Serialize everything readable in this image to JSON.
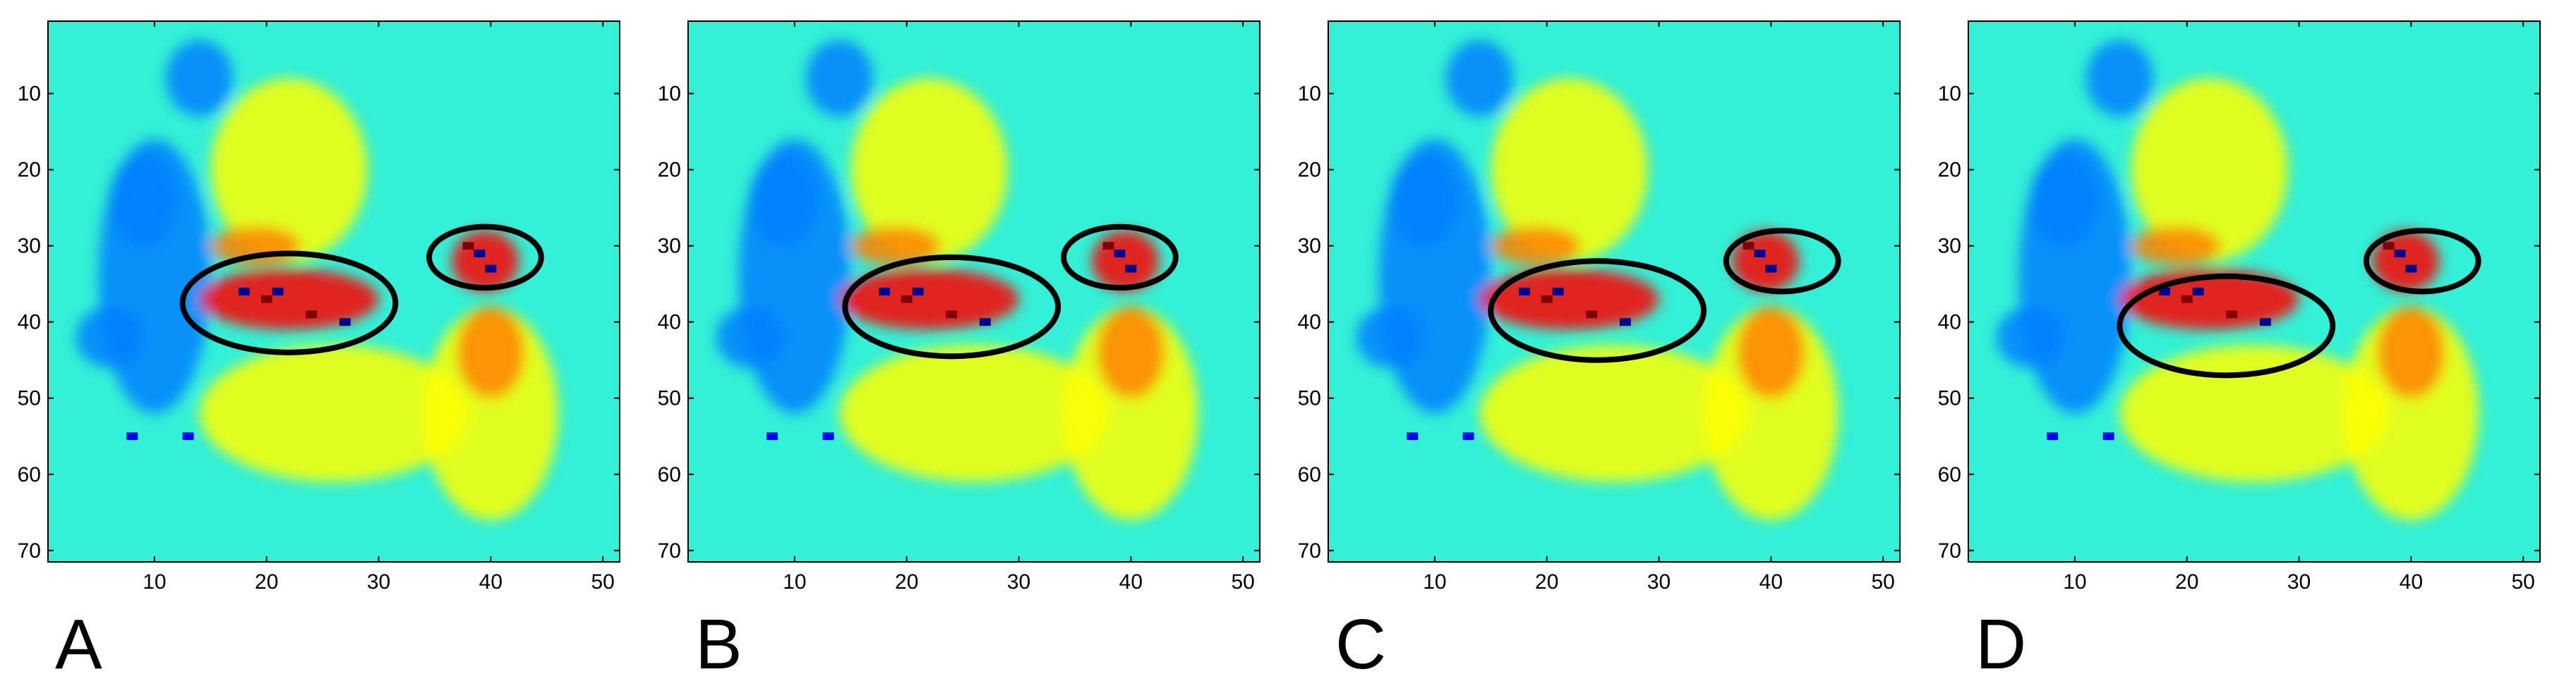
{
  "figure": {
    "panels": [
      {
        "label": "A"
      },
      {
        "label": "B"
      },
      {
        "label": "C"
      },
      {
        "label": "D"
      }
    ]
  },
  "colors": {
    "background_cyan": "#33f0d6",
    "ellipse_stroke": "#000000",
    "colormap": [
      "#00008f",
      "#0000ff",
      "#0080ff",
      "#00ffff",
      "#80ff80",
      "#ffff00",
      "#ff8000",
      "#ff0000",
      "#800000"
    ]
  },
  "chart_data": [
    {
      "type": "heatmap",
      "panel": "A",
      "colormap": "jet",
      "grid": false,
      "xlim": [
        0.5,
        51.5
      ],
      "ylim": [
        71.5,
        0.5
      ],
      "y_direction": "reversed",
      "x_ticks": [
        10,
        20,
        30,
        40,
        50
      ],
      "y_ticks": [
        10,
        20,
        30,
        40,
        50,
        60,
        70
      ],
      "annotations": [
        {
          "shape": "ellipse",
          "center": [
            22,
            37.5
          ],
          "radii": [
            9.5,
            6.5
          ]
        },
        {
          "shape": "ellipse",
          "center": [
            39.5,
            31.5
          ],
          "radii": [
            5,
            4
          ]
        }
      ]
    },
    {
      "type": "heatmap",
      "panel": "B",
      "colormap": "jet",
      "grid": false,
      "xlim": [
        0.5,
        51.5
      ],
      "ylim": [
        71.5,
        0.5
      ],
      "y_direction": "reversed",
      "x_ticks": [
        10,
        20,
        30,
        40,
        50
      ],
      "y_ticks": [
        10,
        20,
        30,
        40,
        50,
        60,
        70
      ],
      "annotations": [
        {
          "shape": "ellipse",
          "center": [
            24,
            38
          ],
          "radii": [
            9.5,
            6.5
          ]
        },
        {
          "shape": "ellipse",
          "center": [
            39,
            31.5
          ],
          "radii": [
            5,
            4
          ]
        }
      ]
    },
    {
      "type": "heatmap",
      "panel": "C",
      "colormap": "jet",
      "grid": false,
      "xlim": [
        0.5,
        51.5
      ],
      "ylim": [
        71.5,
        0.5
      ],
      "y_direction": "reversed",
      "x_ticks": [
        10,
        20,
        30,
        40,
        50
      ],
      "y_ticks": [
        10,
        20,
        30,
        40,
        50,
        60,
        70
      ],
      "annotations": [
        {
          "shape": "ellipse",
          "center": [
            24.5,
            38.5
          ],
          "radii": [
            9.5,
            6.5
          ]
        },
        {
          "shape": "ellipse",
          "center": [
            41,
            32
          ],
          "radii": [
            5,
            4
          ]
        }
      ]
    },
    {
      "type": "heatmap",
      "panel": "D",
      "colormap": "jet",
      "grid": false,
      "xlim": [
        0.5,
        51.5
      ],
      "ylim": [
        71.5,
        0.5
      ],
      "y_direction": "reversed",
      "x_ticks": [
        10,
        20,
        30,
        40,
        50
      ],
      "y_ticks": [
        10,
        20,
        30,
        40,
        50,
        60,
        70
      ],
      "annotations": [
        {
          "shape": "ellipse",
          "center": [
            23.5,
            40.5
          ],
          "radii": [
            9.5,
            6.5
          ]
        },
        {
          "shape": "ellipse",
          "center": [
            41,
            32
          ],
          "radii": [
            5,
            4
          ]
        }
      ]
    }
  ]
}
